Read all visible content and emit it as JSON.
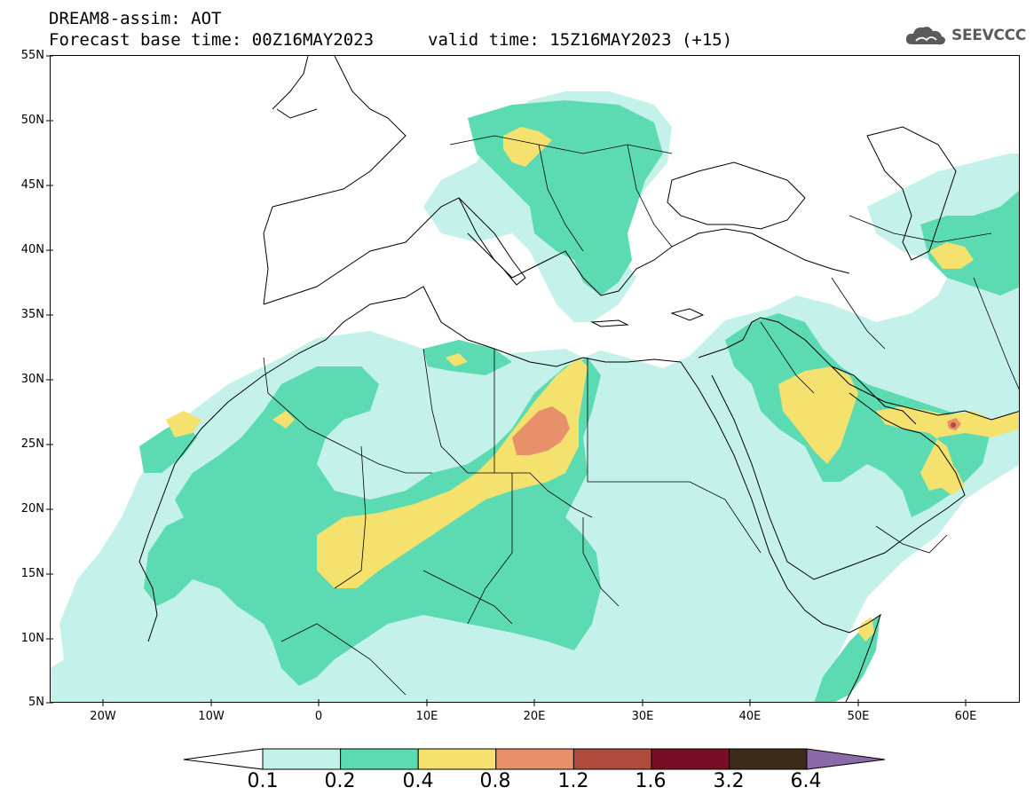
{
  "header": {
    "line1": "DREAM8-assim: AOT",
    "line2": "Forecast base time: 00Z16MAY2023",
    "valid": "valid time: 15Z16MAY2023 (+15)"
  },
  "logo": {
    "icon": "cloud-icon",
    "text": "SEEVCCC",
    "color": "#5a5a5a"
  },
  "axes": {
    "lat_labels": [
      "55N",
      "50N",
      "45N",
      "40N",
      "35N",
      "30N",
      "25N",
      "20N",
      "15N",
      "10N",
      "5N"
    ],
    "lon_labels": [
      "20W",
      "10W",
      "0",
      "10E",
      "20E",
      "30E",
      "40E",
      "50E",
      "60E"
    ]
  },
  "colorbar": {
    "levels": [
      "0.1",
      "0.2",
      "0.4",
      "0.8",
      "1.2",
      "1.6",
      "3.2",
      "6.4"
    ],
    "colors": [
      "#c4f2ea",
      "#5cdbb2",
      "#f5e26e",
      "#e8906a",
      "#b04a3c",
      "#7a0d26",
      "#3c2a1a",
      "#8a6aa8"
    ],
    "under_color": "#ffffff"
  }
}
